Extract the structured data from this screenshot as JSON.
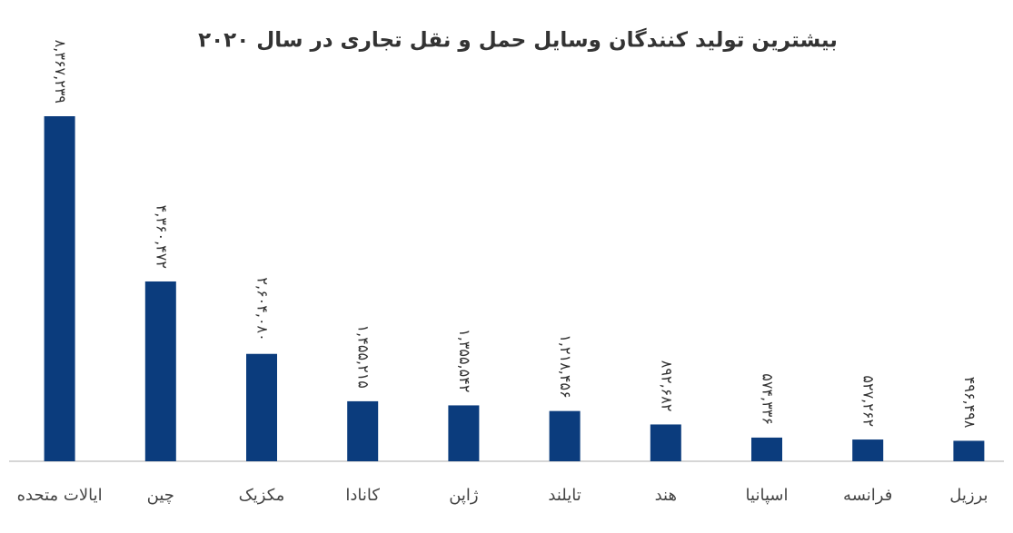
{
  "chart_data": {
    "type": "bar",
    "title": "بیشترین تولید کنندگان وسایل حمل و نقل تجاری در سال ۲۰۲۰",
    "categories": [
      "ایالات متحده",
      "چین",
      "مکزیک",
      "کانادا",
      "ژاپن",
      "تایلند",
      "هند",
      "اسپانیا",
      "فرانسه",
      "برزیل"
    ],
    "values": [
      8367239,
      4360472,
      2604080,
      1455215,
      1355542,
      1218456,
      892682,
      574336,
      527262,
      496498
    ],
    "value_labels": [
      "۸,۳۶۷,۲۳۹",
      "۴,۳۶۰,۴۷۲",
      "۲,۶۰۴,۰۸۰",
      "۱,۴۵۵,۲۱۵",
      "۱,۳۵۵,۵۴۲",
      "۱,۲۱۸,۴۵۶",
      "۸۹۲,۶۸۲",
      "۵۷۴,۳۳۶",
      "۵۲۷,۲۶۲",
      "۴۹۶,۴۹۸"
    ],
    "color": "#0b3c7d"
  }
}
